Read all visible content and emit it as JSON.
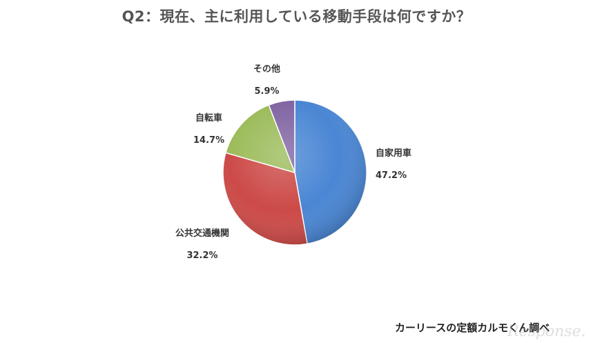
{
  "title": "Q2：現在、主に利用している移動手段は何ですか？",
  "source_note": "カーリースの定額カルモくん調べ",
  "watermark": "Response.",
  "colors": {
    "title": "#555555",
    "label": "#333333"
  },
  "chart_data": {
    "type": "pie",
    "title": "Q2：現在、主に利用している移動手段は何ですか？",
    "start_angle_deg": 0,
    "direction": "clockwise",
    "slices": [
      {
        "label": "自家用車",
        "value": 47.2,
        "value_label": "47.2%",
        "color": "#4a86d4"
      },
      {
        "label": "公共交通機関",
        "value": 32.2,
        "value_label": "32.2%",
        "color": "#cc4a47"
      },
      {
        "label": "自転車",
        "value": 14.7,
        "value_label": "14.7%",
        "color": "#9bbb59"
      },
      {
        "label": "その他",
        "value": 5.9,
        "value_label": "5.9%",
        "color": "#8064a2"
      }
    ]
  }
}
